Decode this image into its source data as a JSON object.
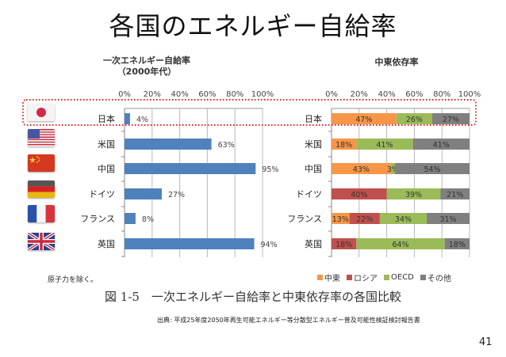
{
  "page": {
    "title": "各国のエネルギー自給率",
    "note": "原子力を除く。",
    "caption": "図 1-5　一次エネルギー自給率と中東依存率の各国比較",
    "source": "出典: 平成25年度2050年再生可能エネルギー等分散型エネルギー普及可能性検証検討報告書",
    "page_number": "41"
  },
  "flags": [
    {
      "country": "日本",
      "icon": "japan-flag-icon"
    },
    {
      "country": "米国",
      "icon": "usa-flag-icon"
    },
    {
      "country": "中国",
      "icon": "china-flag-icon"
    },
    {
      "country": "ドイツ",
      "icon": "germany-flag-icon"
    },
    {
      "country": "フランス",
      "icon": "france-flag-icon"
    },
    {
      "country": "英国",
      "icon": "uk-flag-icon"
    }
  ],
  "highlight": {
    "row": "日本",
    "color": "#e02020"
  },
  "chart_data": [
    {
      "type": "bar",
      "orientation": "horizontal",
      "title": "一次エネルギー自給率",
      "subtitle": "（2000年代）",
      "categories": [
        "日本",
        "米国",
        "中国",
        "ドイツ",
        "フランス",
        "英国"
      ],
      "values": [
        4,
        63,
        95,
        27,
        8,
        94
      ],
      "data_labels": [
        "4%",
        "63%",
        "95%",
        "27%",
        "8%",
        "94%"
      ],
      "xlim": [
        0,
        100
      ],
      "xticks": [
        "0%",
        "20%",
        "40%",
        "60%",
        "80%",
        "100%"
      ],
      "xtick_values": [
        0,
        20,
        40,
        60,
        80,
        100
      ],
      "color": "#4f81bd",
      "grid": true,
      "xaxis_position": "top"
    },
    {
      "type": "bar",
      "orientation": "horizontal",
      "stacked": true,
      "title": "中東依存率",
      "categories": [
        "日本",
        "米国",
        "中国",
        "ドイツ",
        "フランス",
        "英国"
      ],
      "xlim": [
        0,
        100
      ],
      "xticks": [
        "0%",
        "20%",
        "40%",
        "60%",
        "80%",
        "100%"
      ],
      "xtick_values": [
        0,
        20,
        40,
        60,
        80,
        100
      ],
      "grid": true,
      "xaxis_position": "top",
      "legend_position": "bottom",
      "series": [
        {
          "name": "中東",
          "color": "#f79646",
          "values": [
            47,
            18,
            43,
            0,
            13,
            0
          ]
        },
        {
          "name": "ロシア",
          "color": "#c0504d",
          "values": [
            0,
            0,
            0,
            40,
            22,
            18
          ]
        },
        {
          "name": "OECD",
          "color": "#9bbb59",
          "values": [
            26,
            41,
            3,
            39,
            34,
            64
          ]
        },
        {
          "name": "その他",
          "color": "#7f7f7f",
          "values": [
            27,
            41,
            54,
            21,
            31,
            18
          ]
        }
      ]
    }
  ]
}
